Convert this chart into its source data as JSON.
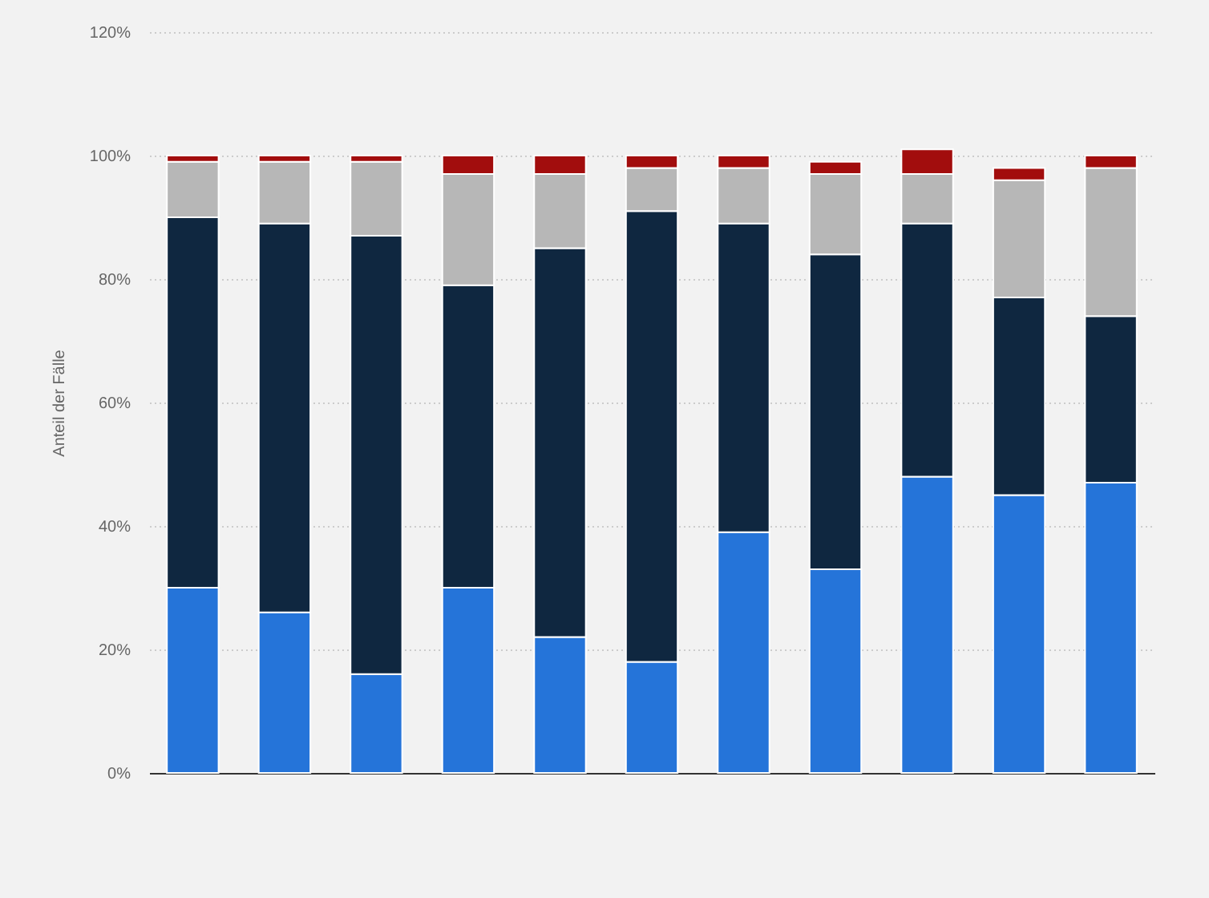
{
  "chart_data": {
    "type": "bar",
    "stacked": true,
    "ylabel": "Anteil der Fälle",
    "categories": [
      null,
      null,
      null,
      null,
      null,
      null,
      null,
      null,
      null,
      null,
      null
    ],
    "series": [
      {
        "color": "#2574d9",
        "values": [
          30,
          26,
          16,
          30,
          22,
          18,
          39,
          33,
          48,
          45,
          47
        ]
      },
      {
        "color": "#0f2740",
        "values": [
          60,
          63,
          71,
          49,
          63,
          73,
          50,
          51,
          41,
          32,
          27
        ]
      },
      {
        "color": "#b7b7b7",
        "values": [
          9,
          10,
          12,
          18,
          12,
          7,
          9,
          13,
          8,
          19,
          24
        ]
      },
      {
        "color": "#a20d0d",
        "values": [
          1,
          1,
          1,
          3,
          3,
          2,
          2,
          2,
          4,
          2,
          2
        ]
      }
    ],
    "ylim": [
      0,
      120
    ],
    "yticks": [
      {
        "value": 0,
        "label": "0%"
      },
      {
        "value": 20,
        "label": "20%"
      },
      {
        "value": 40,
        "label": "40%"
      },
      {
        "value": 60,
        "label": "60%"
      },
      {
        "value": 80,
        "label": "80%"
      },
      {
        "value": 100,
        "label": "100%"
      },
      {
        "value": 120,
        "label": "120%"
      }
    ],
    "grid": "y",
    "tick_labels": "y"
  }
}
